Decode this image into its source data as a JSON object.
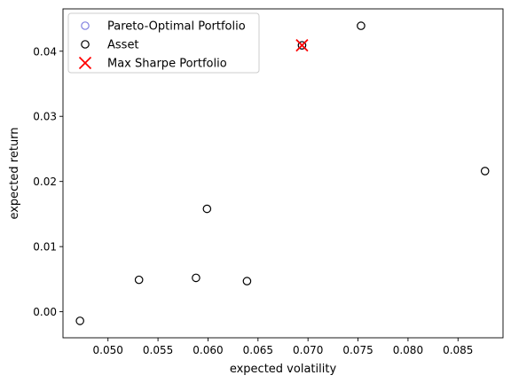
{
  "chart_data": {
    "type": "scatter",
    "title": "",
    "xlabel": "expected volatility",
    "ylabel": "expected return",
    "xlim": [
      0.0455,
      0.0895
    ],
    "ylim": [
      -0.004,
      0.0465
    ],
    "grid": false,
    "legend_position": "top-left",
    "x_ticks": [
      {
        "value": 0.05,
        "label": "0.050"
      },
      {
        "value": 0.055,
        "label": "0.055"
      },
      {
        "value": 0.06,
        "label": "0.060"
      },
      {
        "value": 0.065,
        "label": "0.065"
      },
      {
        "value": 0.07,
        "label": "0.070"
      },
      {
        "value": 0.075,
        "label": "0.075"
      },
      {
        "value": 0.08,
        "label": "0.080"
      },
      {
        "value": 0.085,
        "label": "0.085"
      }
    ],
    "y_ticks": [
      {
        "value": 0.0,
        "label": "0.00"
      },
      {
        "value": 0.01,
        "label": "0.01"
      },
      {
        "value": 0.02,
        "label": "0.02"
      },
      {
        "value": 0.03,
        "label": "0.03"
      },
      {
        "value": 0.04,
        "label": "0.04"
      }
    ],
    "series": [
      {
        "name": "Pareto-Optimal Portfolio",
        "marker": "open-circle",
        "color": "#8080e0",
        "points": [
          {
            "x": 0.0694,
            "y": 0.0409
          }
        ]
      },
      {
        "name": "Asset",
        "marker": "open-circle",
        "color": "#000000",
        "points": [
          {
            "x": 0.0472,
            "y": -0.0014
          },
          {
            "x": 0.0531,
            "y": 0.0049
          },
          {
            "x": 0.0588,
            "y": 0.0052
          },
          {
            "x": 0.0599,
            "y": 0.0158
          },
          {
            "x": 0.0639,
            "y": 0.0047
          },
          {
            "x": 0.0694,
            "y": 0.0409
          },
          {
            "x": 0.0753,
            "y": 0.0439
          },
          {
            "x": 0.0877,
            "y": 0.0216
          }
        ]
      },
      {
        "name": "Max Sharpe Portfolio",
        "marker": "x",
        "color": "#ff0000",
        "points": [
          {
            "x": 0.0694,
            "y": 0.0409
          }
        ]
      }
    ]
  }
}
